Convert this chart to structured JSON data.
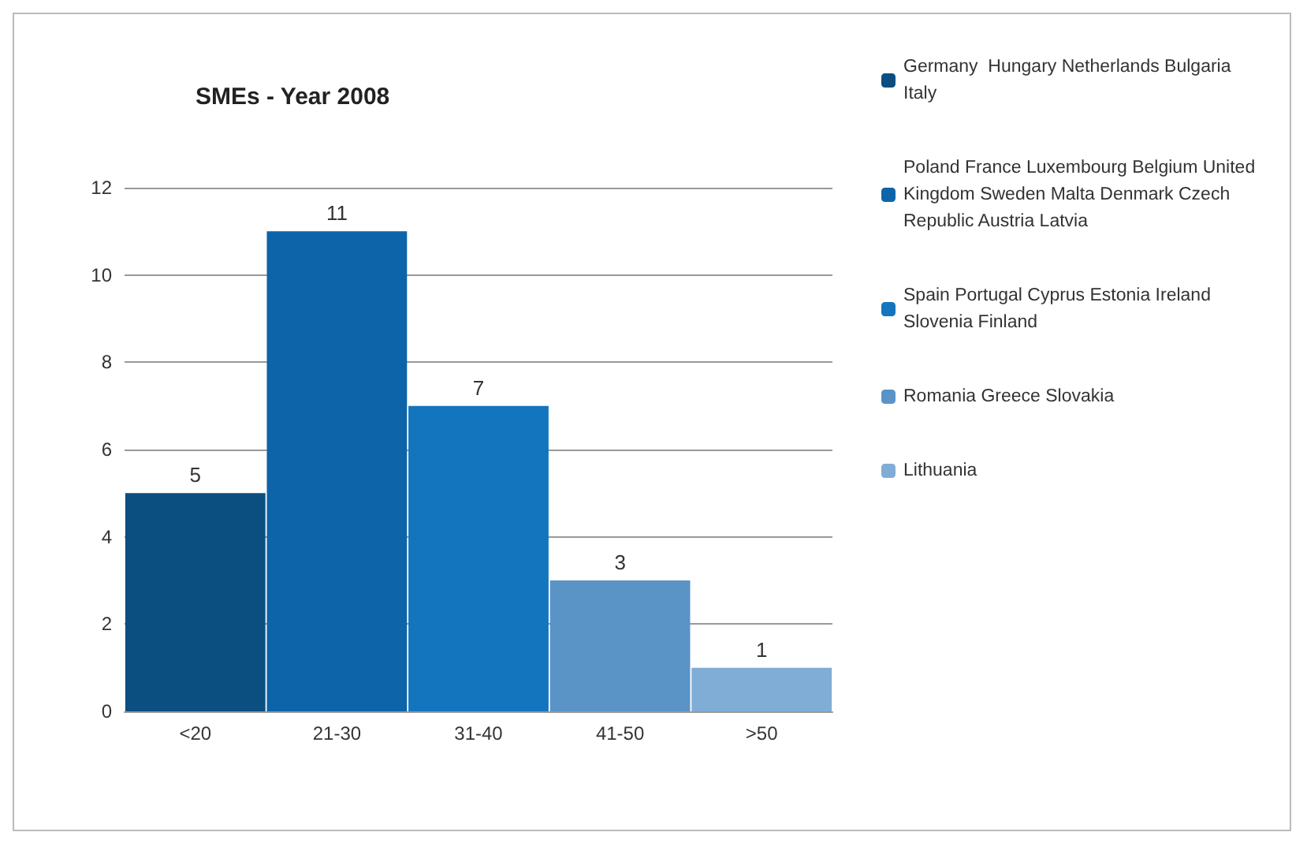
{
  "chart_data": {
    "type": "bar",
    "title": "SMEs - Year 2008",
    "categories": [
      "<20",
      "21-30",
      "31-40",
      "41-50",
      ">50"
    ],
    "stacked": true,
    "series": [
      {
        "name": "Germany  Hungary Netherlands Bulgaria Italy",
        "color": "#0b4f80",
        "values": [
          5,
          null,
          null,
          null,
          null
        ]
      },
      {
        "name": "Poland France Luxembourg Belgium United Kingdom Sweden Malta Denmark Czech Republic Austria Latvia",
        "color": "#0d64a8",
        "values": [
          null,
          11,
          null,
          null,
          null
        ]
      },
      {
        "name": "Spain Portugal Cyprus Estonia Ireland Slovenia Finland",
        "color": "#1275bd",
        "values": [
          null,
          null,
          7,
          null,
          null
        ]
      },
      {
        "name": "Romania Greece Slovakia",
        "color": "#5a93c6",
        "values": [
          null,
          null,
          null,
          3,
          null
        ]
      },
      {
        "name": "Lithuania",
        "color": "#7fadd6",
        "values": [
          null,
          null,
          null,
          null,
          1
        ]
      }
    ],
    "ylim": [
      0,
      12
    ],
    "yticks": [
      0,
      2,
      4,
      6,
      8,
      10,
      12
    ],
    "grid": "y",
    "legend": "right",
    "data_labels": true
  }
}
